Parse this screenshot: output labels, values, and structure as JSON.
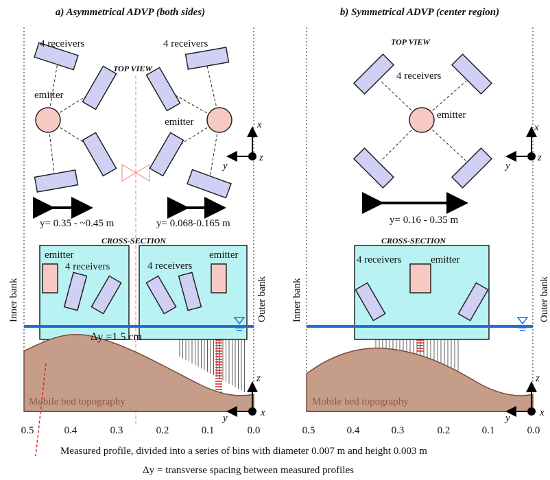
{
  "panel_a": {
    "title": "a) Asymmetrical ADVP (both sides)",
    "top_view": "TOP VIEW",
    "left_receivers": "4 receivers",
    "right_receivers": "4 receivers",
    "left_emitter": "emitter",
    "right_emitter": "emitter",
    "left_range": "y= 0.35 - ~0.45 m",
    "right_range": "y= 0.068-0.165 m",
    "cross_section": "CROSS-SECTION",
    "cs_left_emitter": "emitter",
    "cs_left_receivers": "4 receivers",
    "cs_right_receivers": "4 receivers",
    "cs_right_emitter": "emitter",
    "spacing": "Δy =1.5 cm",
    "bed": "Mobile bed topography",
    "inner_bank": "Inner bank",
    "outer_bank": "Outer bank",
    "top_axes": {
      "x": "x",
      "y": "y",
      "z": "z"
    },
    "bottom_axes": {
      "x": "x",
      "y": "y",
      "z": "z"
    },
    "ticks": [
      "0.5",
      "0.4",
      "0.3",
      "0.2",
      "0.1",
      "0.0"
    ]
  },
  "panel_b": {
    "title": "b) Symmetrical ADVP (center region)",
    "top_view": "TOP VIEW",
    "receivers": "4 receivers",
    "emitter": "emitter",
    "range": "y= 0.16 - 0.35 m",
    "cross_section": "CROSS-SECTION",
    "cs_receivers": "4 receivers",
    "cs_emitter": "emitter",
    "bed": "Mobile bed topography",
    "inner_bank": "Inner bank",
    "outer_bank": "Outer bank",
    "top_axes": {
      "x": "x",
      "y": "y",
      "z": "z"
    },
    "bottom_axes": {
      "x": "x",
      "y": "y",
      "z": "z"
    },
    "ticks": [
      "0.5",
      "0.4",
      "0.3",
      "0.2",
      "0.1",
      "0.0"
    ]
  },
  "footer": [
    "Measured profile, divided into a series of bins with diameter 0.007 m and height 0.003 m",
    "Δy = transverse spacing between measured profiles"
  ]
}
